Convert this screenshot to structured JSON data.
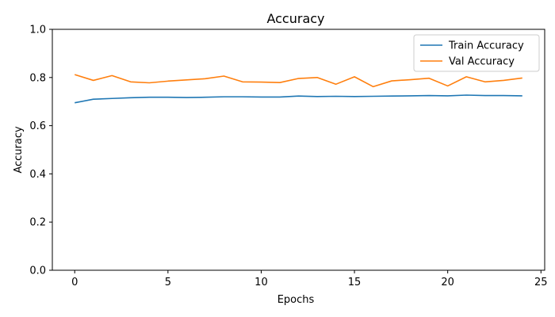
{
  "chart_data": {
    "type": "line",
    "title": "Accuracy",
    "xlabel": "Epochs",
    "ylabel": "Accuracy",
    "xlim": [
      -1.2,
      25.2
    ],
    "ylim": [
      0,
      1.0
    ],
    "xticks": [
      0,
      5,
      10,
      15,
      20,
      25
    ],
    "yticks": [
      0.0,
      0.2,
      0.4,
      0.6,
      0.8,
      1.0
    ],
    "xtick_labels": [
      "0",
      "5",
      "10",
      "15",
      "20",
      "25"
    ],
    "ytick_labels": [
      "0.0",
      "0.2",
      "0.4",
      "0.6",
      "0.8",
      "1.0"
    ],
    "legend_position": "top-right",
    "grid": false,
    "x": [
      0,
      1,
      2,
      3,
      4,
      5,
      6,
      7,
      8,
      9,
      10,
      11,
      12,
      13,
      14,
      15,
      16,
      17,
      18,
      19,
      20,
      21,
      22,
      23,
      24
    ],
    "series": [
      {
        "name": "Train Accuracy",
        "color": "#1f77b4",
        "values": [
          0.695,
          0.71,
          0.713,
          0.716,
          0.718,
          0.718,
          0.717,
          0.718,
          0.72,
          0.72,
          0.719,
          0.719,
          0.723,
          0.721,
          0.722,
          0.721,
          0.722,
          0.723,
          0.724,
          0.725,
          0.724,
          0.727,
          0.725,
          0.725,
          0.724
        ]
      },
      {
        "name": "Val Accuracy",
        "color": "#ff7f0e",
        "values": [
          0.812,
          0.788,
          0.808,
          0.782,
          0.778,
          0.785,
          0.79,
          0.795,
          0.806,
          0.782,
          0.781,
          0.779,
          0.796,
          0.8,
          0.772,
          0.803,
          0.762,
          0.786,
          0.791,
          0.797,
          0.765,
          0.803,
          0.782,
          0.788,
          0.798
        ]
      }
    ]
  }
}
